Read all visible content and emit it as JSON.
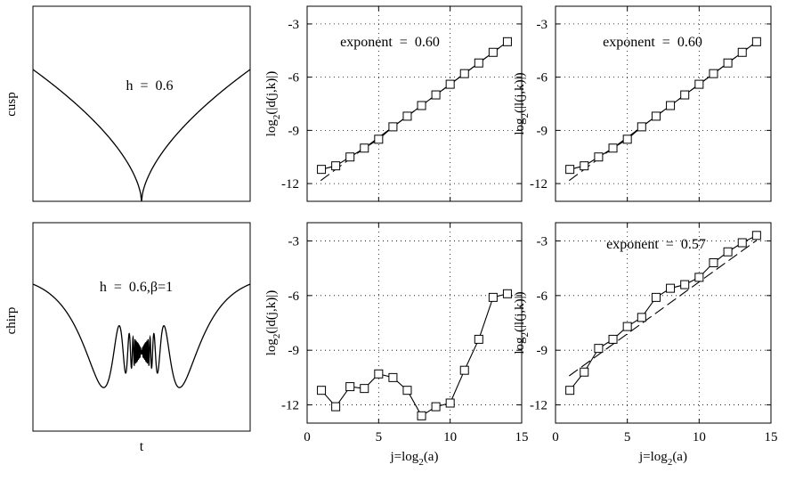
{
  "row_labels": [
    "cusp",
    "chirp"
  ],
  "signal_xlabel": "t",
  "panels": [
    {
      "annotation": "h  =  0.6"
    },
    {
      "annotation": "h  =  0.6,β=1"
    }
  ],
  "chart_data": [
    {
      "type": "line",
      "title": "",
      "annotation": "exponent  =  0.60",
      "xlabel": "",
      "ylabel": "log2(|d(j,k)|)",
      "ylabel_base": "log",
      "ylabel_sub": "2",
      "ylabel_tail": "(|d(j,k)|)",
      "xlim": [
        0,
        15
      ],
      "ylim": [
        -13,
        -2
      ],
      "xticks": [
        0,
        5,
        10,
        15
      ],
      "yticks": [
        -12,
        -9,
        -6,
        -3
      ],
      "grid": true,
      "x": [
        1,
        2,
        3,
        4,
        5,
        6,
        7,
        8,
        9,
        10,
        11,
        12,
        13,
        14
      ],
      "y": [
        -11.2,
        -11.0,
        -10.5,
        -10.0,
        -9.5,
        -8.8,
        -8.2,
        -7.6,
        -7.0,
        -6.4,
        -5.8,
        -5.2,
        -4.6,
        -4.0
      ],
      "fit": {
        "slope": 0.6,
        "intercept": -12.4,
        "x_range": [
          1,
          14
        ]
      }
    },
    {
      "type": "line",
      "title": "",
      "annotation": "exponent  =  0.60",
      "xlabel": "",
      "ylabel": "log2(|l(j,k)|)",
      "ylabel_base": "log",
      "ylabel_sub": "2",
      "ylabel_tail": "(|l(j,k)|)",
      "xlim": [
        0,
        15
      ],
      "ylim": [
        -13,
        -2
      ],
      "xticks": [
        0,
        5,
        10,
        15
      ],
      "yticks": [
        -12,
        -9,
        -6,
        -3
      ],
      "grid": true,
      "x": [
        1,
        2,
        3,
        4,
        5,
        6,
        7,
        8,
        9,
        10,
        11,
        12,
        13,
        14
      ],
      "y": [
        -11.2,
        -11.0,
        -10.5,
        -10.0,
        -9.5,
        -8.8,
        -8.2,
        -7.6,
        -7.0,
        -6.4,
        -5.8,
        -5.2,
        -4.6,
        -4.0
      ],
      "fit": {
        "slope": 0.6,
        "intercept": -12.4,
        "x_range": [
          1,
          14
        ]
      }
    },
    {
      "type": "line",
      "title": "",
      "annotation": "",
      "xlabel": "j=log2(a)",
      "xlabel_base": "j=log",
      "xlabel_sub": "2",
      "xlabel_tail": "(a)",
      "ylabel": "log2(|d(j,k)|)",
      "ylabel_base": "log",
      "ylabel_sub": "2",
      "ylabel_tail": "(|d(j,k)|)",
      "xlim": [
        0,
        15
      ],
      "ylim": [
        -13,
        -2
      ],
      "xticks": [
        0,
        5,
        10,
        15
      ],
      "yticks": [
        -12,
        -9,
        -6,
        -3
      ],
      "grid": true,
      "x": [
        1,
        2,
        3,
        4,
        5,
        6,
        7,
        8,
        9,
        10,
        11,
        12,
        13,
        14
      ],
      "y": [
        -11.2,
        -12.1,
        -11.0,
        -11.1,
        -10.3,
        -10.5,
        -11.2,
        -12.6,
        -12.1,
        -11.9,
        -10.1,
        -8.4,
        -6.1,
        -5.9
      ]
    },
    {
      "type": "line",
      "title": "",
      "annotation": "exponent  =  0.57",
      "xlabel": "j=log2(a)",
      "xlabel_base": "j=log",
      "xlabel_sub": "2",
      "xlabel_tail": "(a)",
      "ylabel": "log2(|l(j,k)|)",
      "ylabel_base": "log",
      "ylabel_sub": "2",
      "ylabel_tail": "(|l(j,k)|)",
      "xlim": [
        0,
        15
      ],
      "ylim": [
        -13,
        -2
      ],
      "xticks": [
        0,
        5,
        10,
        15
      ],
      "yticks": [
        -12,
        -9,
        -6,
        -3
      ],
      "grid": true,
      "x": [
        1,
        2,
        3,
        4,
        5,
        6,
        7,
        8,
        9,
        10,
        11,
        12,
        13,
        14
      ],
      "y": [
        -11.2,
        -10.2,
        -8.9,
        -8.4,
        -7.7,
        -7.2,
        -6.1,
        -5.6,
        -5.4,
        -5.0,
        -4.2,
        -3.6,
        -3.1,
        -2.7
      ],
      "fit": {
        "slope": 0.57,
        "intercept": -10.95,
        "x_range": [
          1,
          14
        ]
      }
    }
  ]
}
